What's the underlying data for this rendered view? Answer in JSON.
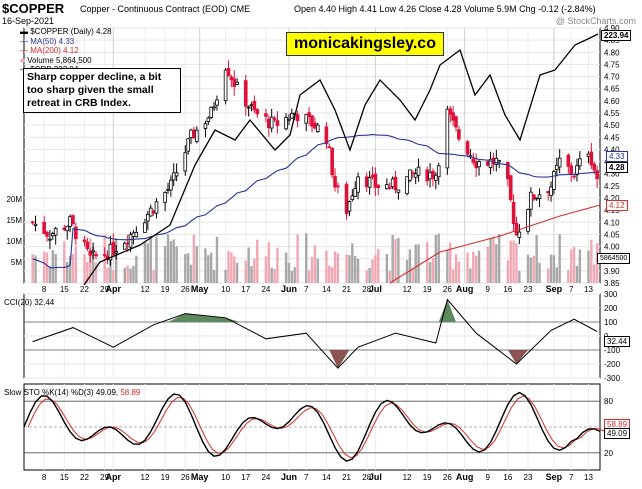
{
  "header": {
    "symbol": "$COPPER",
    "name": "Copper - Continuous Contract (EOD)",
    "exchange": "CME",
    "date": "16-Sep-2021",
    "ohlc": "Open 4.40  High 4.41  Low 4.26  Close 4.28  Volume 5.9M  Chg -0.12 (-2.84%)",
    "credit": "@ StockCharts.com"
  },
  "legend": {
    "main": "$COPPER (Daily) 4.28",
    "ma50": "MA(50) 4.33",
    "ma200": "MA(200) 4.12",
    "volume": "Volume 5,864,500",
    "crb": "$CRB 223.94"
  },
  "annotation": "Sharp copper decline, a bit too sharp given the small retreat in CRB Index.",
  "brand": "monicakingsley.co",
  "panels": {
    "cci_label": "CCI(20) 32.44",
    "sto_label_a": "Slow STO %K(14) %D(3) 49.09,",
    "sto_label_b": "58.89"
  },
  "price_tags": {
    "crb": "223.94",
    "ma50": "4.33",
    "close": "4.28",
    "ma200": "4.12",
    "vol": "5864500",
    "cci": "32.44",
    "stoD": "58.89",
    "stoK": "49.09"
  },
  "colors": {
    "up": "#000000",
    "down": "#e0103a",
    "ma50": "#283593",
    "ma200": "#d32f2f",
    "crb": "#000000",
    "vol_up": "#a8a8a8",
    "vol_down": "#f0a8b4",
    "cci_up": "#5d8a5d",
    "cci_down": "#8c5353"
  },
  "chart_data": [
    {
      "type": "candlestick",
      "title": "$COPPER Copper - Continuous Contract (EOD)",
      "y_ticks_right": [
        "3.85",
        "3.90",
        "3.95",
        "4.00",
        "4.05",
        "4.10",
        "4.15",
        "4.20",
        "4.25",
        "4.30",
        "4.35",
        "4.40",
        "4.45",
        "4.50",
        "4.55",
        "4.60",
        "4.65",
        "4.70",
        "4.75",
        "4.80",
        "4.85",
        "4.90"
      ],
      "ylim": [
        3.85,
        4.9
      ],
      "x_ticks": [
        "8",
        "15",
        "22",
        "29",
        "Apr",
        "12",
        "19",
        "26",
        "May",
        "10",
        "17",
        "24",
        "Jun",
        "7",
        "14",
        "21",
        "28",
        "Jul",
        "12",
        "19",
        "26",
        "Aug",
        "9",
        "16",
        "23",
        "Sep",
        "7",
        "13"
      ],
      "close_path": [
        [
          "2021-03-04",
          4.1
        ],
        [
          "2021-03-10",
          4.05
        ],
        [
          "2021-03-17",
          4.1
        ],
        [
          "2021-03-24",
          3.95
        ],
        [
          "2021-03-31",
          3.98
        ],
        [
          "2021-04-07",
          4.05
        ],
        [
          "2021-04-14",
          4.15
        ],
        [
          "2021-04-21",
          4.25
        ],
        [
          "2021-04-28",
          4.45
        ],
        [
          "2021-05-05",
          4.55
        ],
        [
          "2021-05-10",
          4.75
        ],
        [
          "2021-05-14",
          4.65
        ],
        [
          "2021-05-20",
          4.55
        ],
        [
          "2021-05-27",
          4.5
        ],
        [
          "2021-06-03",
          4.55
        ],
        [
          "2021-06-10",
          4.5
        ],
        [
          "2021-06-14",
          4.45
        ],
        [
          "2021-06-17",
          4.25
        ],
        [
          "2021-06-21",
          4.15
        ],
        [
          "2021-06-25",
          4.3
        ],
        [
          "2021-07-01",
          4.25
        ],
        [
          "2021-07-08",
          4.25
        ],
        [
          "2021-07-15",
          4.3
        ],
        [
          "2021-07-22",
          4.3
        ],
        [
          "2021-07-26",
          4.55
        ],
        [
          "2021-07-30",
          4.45
        ],
        [
          "2021-08-05",
          4.35
        ],
        [
          "2021-08-12",
          4.35
        ],
        [
          "2021-08-16",
          4.25
        ],
        [
          "2021-08-19",
          4.05
        ],
        [
          "2021-08-24",
          4.2
        ],
        [
          "2021-08-31",
          4.25
        ],
        [
          "2021-09-03",
          4.35
        ],
        [
          "2021-09-08",
          4.3
        ],
        [
          "2021-09-13",
          4.4
        ],
        [
          "2021-09-16",
          4.28
        ]
      ],
      "ma50_last": 4.33,
      "ma200_last": 4.12,
      "crb_last": 223.94,
      "volume_y_ticks": [
        "5M",
        "10M",
        "15M",
        "20M"
      ]
    },
    {
      "type": "line",
      "title": "CCI(20)",
      "y_ticks": [
        "-300",
        "-200",
        "-100",
        "0",
        "100",
        "200",
        "300"
      ],
      "ylim": [
        -300,
        300
      ],
      "last": 32.44,
      "values": [
        [
          "2021-03-04",
          -40
        ],
        [
          "2021-03-18",
          60
        ],
        [
          "2021-04-01",
          -80
        ],
        [
          "2021-04-15",
          80
        ],
        [
          "2021-04-26",
          160
        ],
        [
          "2021-05-10",
          130
        ],
        [
          "2021-05-24",
          -20
        ],
        [
          "2021-06-07",
          20
        ],
        [
          "2021-06-18",
          -230
        ],
        [
          "2021-06-25",
          -80
        ],
        [
          "2021-07-08",
          20
        ],
        [
          "2021-07-22",
          -50
        ],
        [
          "2021-07-26",
          260
        ],
        [
          "2021-08-05",
          20
        ],
        [
          "2021-08-19",
          -200
        ],
        [
          "2021-08-31",
          40
        ],
        [
          "2021-09-08",
          120
        ],
        [
          "2021-09-16",
          32
        ]
      ]
    },
    {
      "type": "line",
      "title": "Slow STO %K(14) %D(3)",
      "y_ticks": [
        "20",
        "80"
      ],
      "ylim": [
        0,
        100
      ],
      "series": [
        {
          "name": "%K",
          "last": 49.09
        },
        {
          "name": "%D",
          "last": 58.89
        }
      ]
    }
  ]
}
